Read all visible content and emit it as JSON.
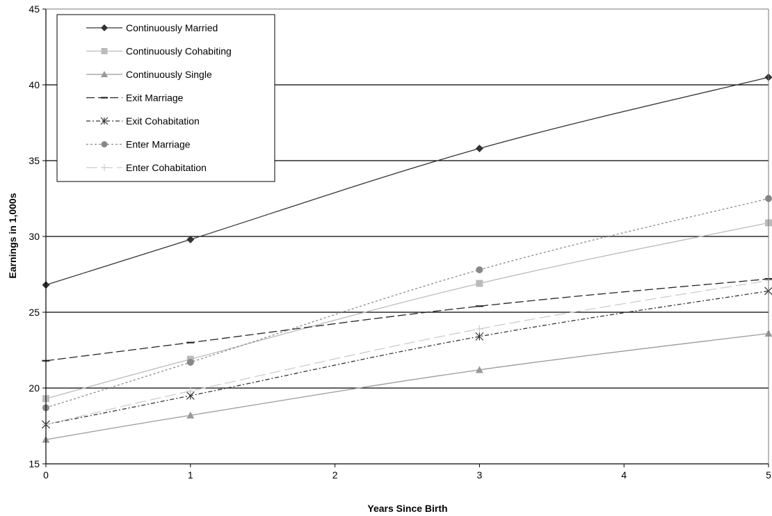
{
  "chart_data": {
    "type": "line",
    "xlabel": "Years Since Birth",
    "ylabel": "Earnings in 1,000s",
    "xlim": [
      0,
      5
    ],
    "ylim": [
      15,
      45
    ],
    "xticks": [
      "0",
      "1",
      "2",
      "3",
      "4",
      "5"
    ],
    "yticks": [
      "15",
      "20",
      "25",
      "30",
      "35",
      "40",
      "45"
    ],
    "grid": "horizontal",
    "legend_position": "top-left",
    "x": [
      0,
      1,
      3,
      5
    ],
    "series": [
      {
        "name": "Continuously Married",
        "values": [
          26.8,
          29.8,
          35.8,
          40.5
        ],
        "color": "#333333",
        "dash": "solid",
        "marker": "diamond"
      },
      {
        "name": "Continuously Cohabiting",
        "values": [
          19.3,
          21.9,
          26.9,
          30.9
        ],
        "color": "#bbbbbb",
        "dash": "solid",
        "marker": "square"
      },
      {
        "name": "Continuously Single",
        "values": [
          16.6,
          18.2,
          21.2,
          23.6
        ],
        "color": "#999999",
        "dash": "solid",
        "marker": "triangle"
      },
      {
        "name": "Exit Marriage",
        "values": [
          21.8,
          23.0,
          25.4,
          27.2
        ],
        "color": "#222222",
        "dash": "dash",
        "marker": "dash"
      },
      {
        "name": "Exit Cohabitation",
        "values": [
          17.6,
          19.5,
          23.4,
          26.4
        ],
        "color": "#333333",
        "dash": "dashdot",
        "marker": "star"
      },
      {
        "name": "Enter Marriage",
        "values": [
          18.7,
          21.7,
          27.8,
          32.5
        ],
        "color": "#888888",
        "dash": "dot",
        "marker": "circle"
      },
      {
        "name": "Enter Cohabitation",
        "values": [
          17.6,
          19.8,
          23.9,
          27.1
        ],
        "color": "#cccccc",
        "dash": "longdash",
        "marker": "plus"
      }
    ]
  }
}
